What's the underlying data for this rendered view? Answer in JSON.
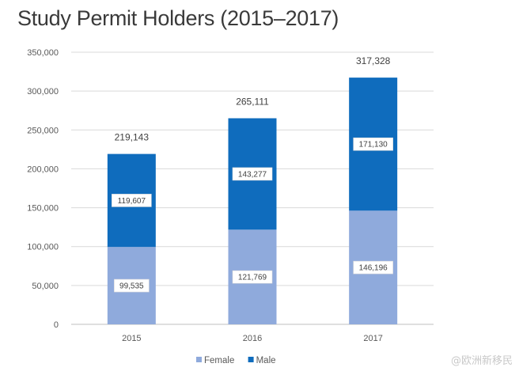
{
  "chart_data": {
    "type": "bar",
    "stacked": true,
    "title": "Study Permit Holders (2015–2017)",
    "categories": [
      "2015",
      "2016",
      "2017"
    ],
    "series": [
      {
        "name": "Female",
        "color": "#8faadc",
        "values": [
          99535,
          121769,
          146196
        ],
        "labels": [
          "99,535",
          "121,769",
          "146,196"
        ]
      },
      {
        "name": "Male",
        "color": "#0f6cbd",
        "values": [
          119607,
          143277,
          171130
        ],
        "labels": [
          "119,607",
          "143,277",
          "171,130"
        ]
      }
    ],
    "totals": [
      219143,
      265111,
      317328
    ],
    "total_labels": [
      "219,143",
      "265,111",
      "317,328"
    ],
    "ylim": [
      0,
      350000
    ],
    "yticks": [
      0,
      50000,
      100000,
      150000,
      200000,
      250000,
      300000,
      350000
    ],
    "ytick_labels": [
      "0",
      "50,000",
      "100,000",
      "150,000",
      "200,000",
      "250,000",
      "300,000",
      "350,000"
    ],
    "xlabel": "",
    "ylabel": "",
    "grid": true,
    "legend": "bottom-center"
  },
  "watermark": "@欧洲新移民"
}
